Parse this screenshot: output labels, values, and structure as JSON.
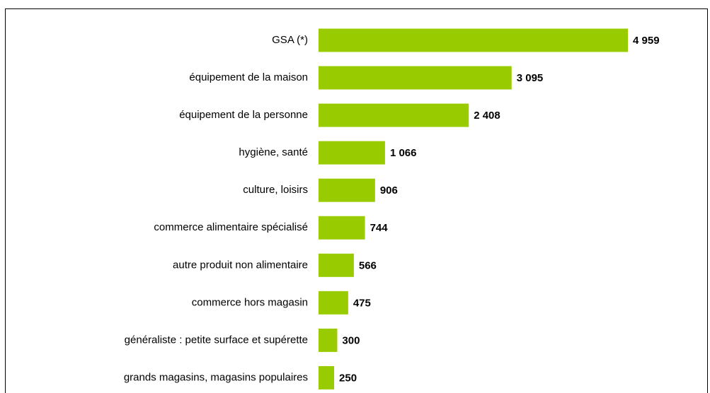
{
  "chart_data": {
    "type": "bar",
    "orientation": "horizontal",
    "categories": [
      "GSA (*)",
      "équipement de la maison",
      "équipement de la personne",
      "hygiène, santé",
      "culture, loisirs",
      "commerce alimentaire spécialisé",
      "autre produit non alimentaire",
      "commerce hors magasin",
      "généraliste : petite surface et supérette",
      "grands magasins, magasins populaires"
    ],
    "values": [
      4959,
      3095,
      2408,
      1066,
      906,
      744,
      566,
      475,
      300,
      250
    ],
    "value_labels": [
      "4 959",
      "3 095",
      "2 408",
      "1 066",
      "906",
      "744",
      "566",
      "475",
      "300",
      "250"
    ],
    "color": "#99cc00"
  }
}
